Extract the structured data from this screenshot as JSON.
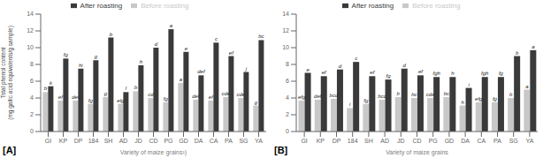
{
  "chart_data": [
    {
      "type": "bar",
      "xlabel": "Variety of maize grains¹)",
      "ylabel": "Total phenol content\n(mg gallic acid equivalents/g sample)",
      "annotations": [
        "[A]"
      ],
      "categories": [
        "GI",
        "KP",
        "DP",
        "184",
        "SH",
        "AD",
        "JD",
        "CD",
        "PG",
        "GD",
        "DA",
        "CA",
        "PA",
        "SG",
        "YA"
      ],
      "series": [
        {
          "name": "Before roasting",
          "color": "#c8c8c8",
          "values": [
            4.7,
            3.7,
            3.7,
            3.3,
            4.1,
            3.3,
            4.8,
            4.0,
            3.5,
            5.8,
            3.8,
            3.7,
            4.1,
            4.0,
            3.1
          ],
          "value_labels": [
            "b",
            "ef",
            "def",
            "fg",
            "g",
            "elg",
            "b",
            "cd",
            "fg",
            "a",
            "def",
            "ef",
            "cde",
            "cde",
            "g"
          ]
        },
        {
          "name": "After roasting",
          "color": "#3a3a3a",
          "values": [
            5.4,
            8.7,
            7.5,
            8.5,
            11.2,
            4.7,
            7.9,
            10.0,
            12.2,
            9.5,
            6.7,
            10.6,
            9.0,
            7.1,
            10.9
          ],
          "value_labels": [
            "k",
            "fg",
            "hi",
            "g",
            "b",
            "l",
            "h",
            "d",
            "a",
            "e",
            "def",
            "c",
            "ef",
            "j",
            "bc"
          ]
        }
      ],
      "ylim": [
        0,
        14
      ],
      "yticks": [
        0,
        2,
        4,
        6,
        8,
        10,
        12,
        14
      ],
      "legend": "top",
      "grid": false
    },
    {
      "type": "bar",
      "xlabel": "Variety of maize grains",
      "annotations": [
        "[B]"
      ],
      "categories": [
        "GI",
        "KP",
        "DP",
        "184",
        "SH",
        "AD",
        "JD",
        "CD",
        "PG",
        "GD",
        "DA",
        "CA",
        "PA",
        "SG",
        "YA"
      ],
      "series": [
        {
          "name": "Before roasting",
          "color": "#c8c8c8",
          "values": [
            3.7,
            3.8,
            3.9,
            2.8,
            3.3,
            3.8,
            4.1,
            4.0,
            4.0,
            4.1,
            3.1,
            3.5,
            3.5,
            4.0,
            5.0
          ],
          "value_labels": [
            "efg",
            "def",
            "bcd",
            "i",
            "fg",
            "bcd",
            "b",
            "bc",
            "cde",
            "bc",
            "h",
            "efg",
            "fg",
            "b",
            "a"
          ]
        },
        {
          "name": "After roasting",
          "color": "#3a3a3a",
          "values": [
            7.0,
            6.6,
            7.4,
            8.3,
            6.6,
            6.2,
            7.5,
            6.7,
            6.5,
            6.5,
            5.2,
            6.5,
            6.5,
            9.0,
            9.7
          ],
          "value_labels": [
            "e",
            "ef",
            "d",
            "c",
            "ef",
            "fg",
            "d",
            "ef",
            "fgh",
            "h",
            "i",
            "fgh",
            "fg",
            "b",
            "a"
          ]
        }
      ],
      "ylim": [
        0,
        14
      ],
      "yticks": [
        0,
        2,
        4,
        6,
        8,
        10,
        12,
        14
      ],
      "legend": "top",
      "grid": false
    }
  ]
}
